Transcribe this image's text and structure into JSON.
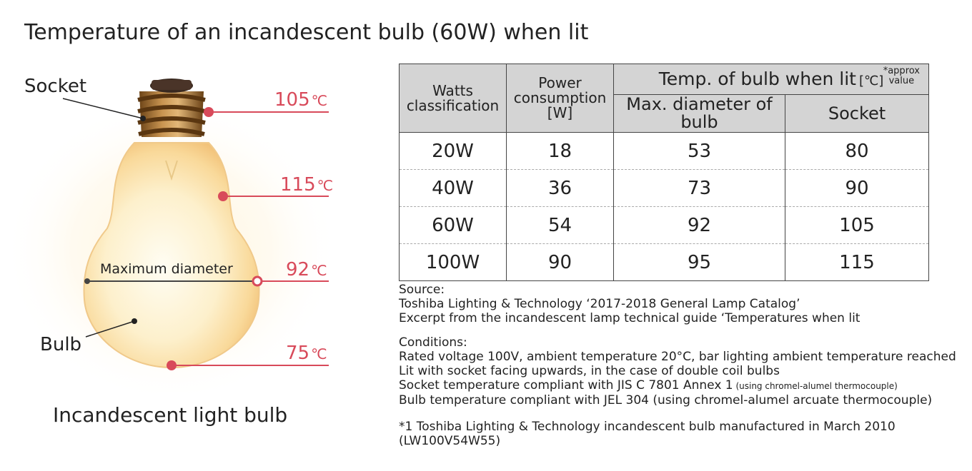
{
  "title": "Temperature of an incandescent bulb (60W) when lit",
  "figure": {
    "socket_label": "Socket",
    "bulb_label": "Bulb",
    "max_diameter_label": "Maximum diameter",
    "caption": "Incandescent light bulb",
    "temps": [
      {
        "value": "105",
        "unit": "℃"
      },
      {
        "value": "115",
        "unit": "℃"
      },
      {
        "value": "92",
        "unit": "℃"
      },
      {
        "value": "75",
        "unit": "℃"
      }
    ],
    "colors": {
      "accent": "#d84a5a",
      "glow": "#fde9b8",
      "socket": "#9a6a2e"
    }
  },
  "table": {
    "headers": {
      "watts": [
        "Watts",
        "classification"
      ],
      "power": [
        "Power",
        "consumption",
        "[W]"
      ],
      "temp": "Temp. of bulb when lit",
      "temp_unit": "[℃]",
      "approx": [
        "*approx",
        "value"
      ],
      "max_diameter": "Max. diameter of bulb",
      "socket": "Socket"
    },
    "rows": [
      {
        "watts": "20W",
        "power": "18",
        "max_diameter": "53",
        "socket": "80"
      },
      {
        "watts": "40W",
        "power": "36",
        "max_diameter": "73",
        "socket": "90"
      },
      {
        "watts": "60W",
        "power": "54",
        "max_diameter": "92",
        "socket": "105"
      },
      {
        "watts": "100W",
        "power": "90",
        "max_diameter": "95",
        "socket": "115"
      }
    ]
  },
  "source": {
    "heading": "Source:",
    "lines": [
      "Toshiba Lighting & Technology ‘2017-2018 General Lamp Catalog’",
      "Excerpt from the incandescent lamp technical guide ‘Temperatures when lit"
    ]
  },
  "conditions": {
    "heading": "Conditions:",
    "line1": "Rated voltage 100V, ambient temperature 20°C, bar lighting ambient temperature reached",
    "line2": "Lit with socket facing upwards, in the case of double coil bulbs",
    "line3_main": "Socket temperature compliant with JIS C 7801 Annex 1",
    "line3_small": " (using chromel-alumel thermocouple)",
    "line4": "Bulb temperature compliant with JEL 304 (using chromel-alumel arcuate thermocouple)"
  },
  "footnote": {
    "line1": "*1 Toshiba Lighting & Technology incandescent bulb manufactured in March 2010",
    "line2": "(LW100V54W55)"
  }
}
